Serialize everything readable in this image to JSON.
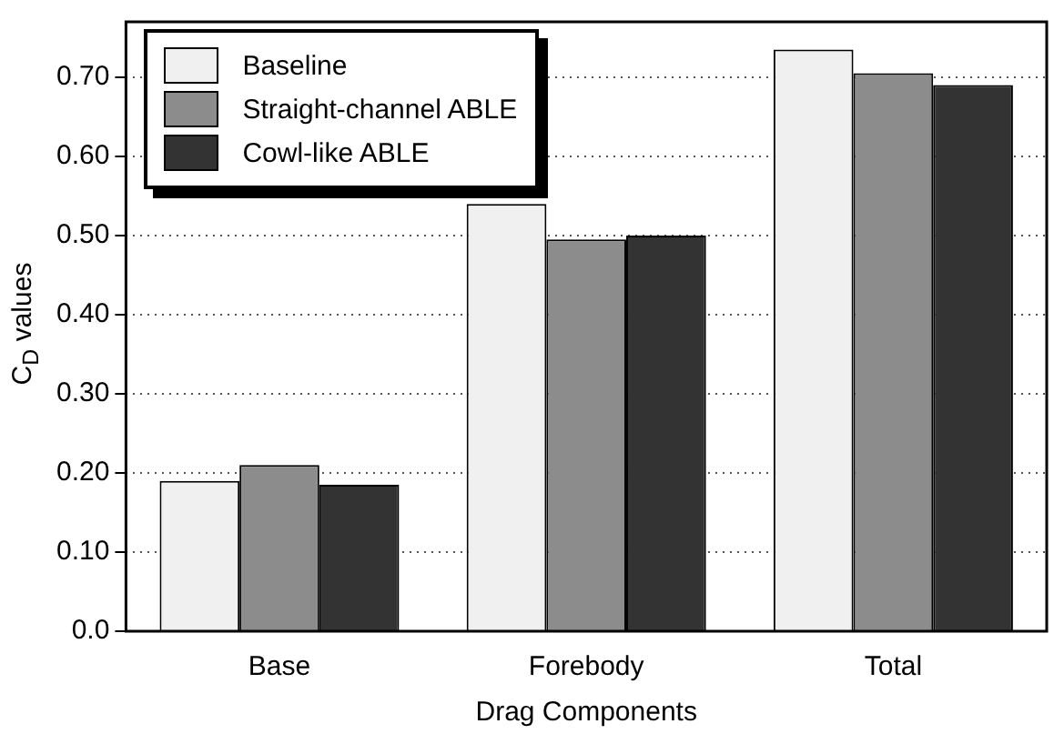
{
  "chart_data": {
    "type": "bar",
    "xlabel": "Drag Components",
    "ylabel": "C$_{D}$ values",
    "categories": [
      "Base",
      "Forebody",
      "Total"
    ],
    "series": [
      {
        "name": "Baseline",
        "color": "#f0f0f0",
        "values": [
          0.19,
          0.54,
          0.735
        ]
      },
      {
        "name": "Straight-channel ABLE",
        "color": "#8c8c8c",
        "values": [
          0.21,
          0.495,
          0.705
        ]
      },
      {
        "name": "Cowl-like ABLE",
        "color": "#333333",
        "values": [
          0.185,
          0.5,
          0.69
        ]
      }
    ],
    "ylim": [
      0,
      0.77
    ],
    "yticks": [
      {
        "value": 0,
        "label": "0.0"
      },
      {
        "value": 0.1,
        "label": "0.10"
      },
      {
        "value": 0.2,
        "label": "0.20"
      },
      {
        "value": 0.3,
        "label": "0.30"
      },
      {
        "value": 0.4,
        "label": "0.40"
      },
      {
        "value": 0.5,
        "label": "0.50"
      },
      {
        "value": 0.6,
        "label": "0.60"
      },
      {
        "value": 0.7,
        "label": "0.70"
      }
    ],
    "grid": "y",
    "legend": "top left"
  }
}
